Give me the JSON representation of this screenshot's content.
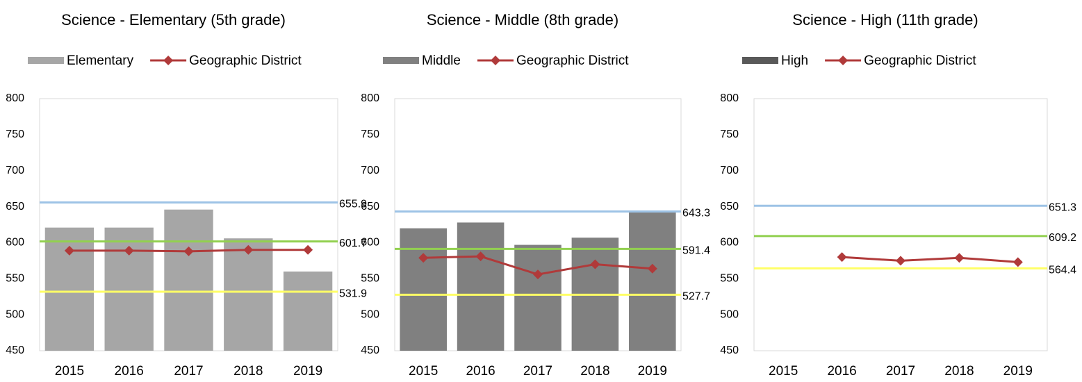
{
  "chart_data": [
    {
      "type": "bar",
      "title": "Science - Elementary (5th grade)",
      "categories": [
        "2015",
        "2016",
        "2017",
        "2018",
        "2019"
      ],
      "series": [
        {
          "name": "Elementary",
          "kind": "bar",
          "color": "#a6a6a6",
          "values": [
            621,
            621,
            646,
            606,
            560
          ]
        },
        {
          "name": "Geographic District",
          "kind": "line",
          "color": "#b03a3a",
          "values": [
            589,
            589,
            588,
            590,
            590
          ]
        }
      ],
      "reference_lines": [
        {
          "value": 655.9,
          "color": "#9dc3e6"
        },
        {
          "value": 601.7,
          "color": "#92d050"
        },
        {
          "value": 531.9,
          "color": "#ffff66"
        }
      ],
      "ylim": [
        450,
        800
      ],
      "yticks": [
        450,
        500,
        550,
        600,
        650,
        700,
        750,
        800
      ]
    },
    {
      "type": "bar",
      "title": "Science - Middle (8th grade)",
      "categories": [
        "2015",
        "2016",
        "2017",
        "2018",
        "2019"
      ],
      "series": [
        {
          "name": "Middle",
          "kind": "bar",
          "color": "#808080",
          "values": [
            620,
            628,
            597,
            607,
            643
          ]
        },
        {
          "name": "Geographic District",
          "kind": "line",
          "color": "#b03a3a",
          "values": [
            579,
            581,
            556,
            570,
            564
          ]
        }
      ],
      "reference_lines": [
        {
          "value": 643.3,
          "color": "#9dc3e6"
        },
        {
          "value": 591.4,
          "color": "#92d050"
        },
        {
          "value": 527.7,
          "color": "#ffff66"
        }
      ],
      "ylim": [
        450,
        800
      ],
      "yticks": [
        450,
        500,
        550,
        600,
        650,
        700,
        750,
        800
      ]
    },
    {
      "type": "bar",
      "title": "Science - High (11th grade)",
      "categories": [
        "2015",
        "2016",
        "2017",
        "2018",
        "2019"
      ],
      "series": [
        {
          "name": "High",
          "kind": "bar",
          "color": "#595959",
          "values": [
            null,
            null,
            null,
            null,
            null
          ]
        },
        {
          "name": "Geographic District",
          "kind": "line",
          "color": "#b03a3a",
          "values": [
            null,
            580,
            575,
            579,
            573
          ]
        }
      ],
      "reference_lines": [
        {
          "value": 651.3,
          "color": "#9dc3e6"
        },
        {
          "value": 609.2,
          "color": "#92d050"
        },
        {
          "value": 564.4,
          "color": "#ffff66"
        }
      ],
      "ylim": [
        450,
        800
      ],
      "yticks": [
        450,
        500,
        550,
        600,
        650,
        700,
        750,
        800
      ]
    }
  ]
}
